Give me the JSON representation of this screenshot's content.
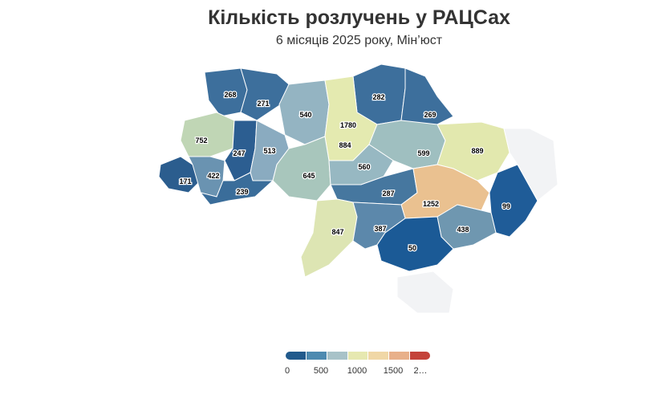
{
  "title": "Кількість розлучень у РАЦСах",
  "subtitle": "6 місяців 2025 року, Мін’юст",
  "legend": {
    "ticks": [
      "0",
      "500",
      "1000",
      "1500",
      "2…"
    ],
    "colors": [
      "#215a8c",
      "#4d8ab0",
      "#a8c2c8",
      "#e6e8b0",
      "#f0d7a6",
      "#e8b08a",
      "#c4433a"
    ]
  },
  "map_data": {
    "type": "choropleth",
    "regions": [
      {
        "value": 268,
        "color": "#3d6f9c"
      },
      {
        "value": 271,
        "color": "#3d6f9c"
      },
      {
        "value": 540,
        "color": "#94b4c2"
      },
      {
        "value": 282,
        "color": "#3d6f9c"
      },
      {
        "value": 269,
        "color": "#3d6f9c"
      },
      {
        "value": 752,
        "color": "#c0d6b5"
      },
      {
        "value": 247,
        "color": "#2c5e91"
      },
      {
        "value": 513,
        "color": "#8aabc0"
      },
      {
        "value": 1780,
        "color": "#b73d36"
      },
      {
        "value": 884,
        "color": "#e4eab0"
      },
      {
        "value": 599,
        "color": "#9fbfc0"
      },
      {
        "value": 889,
        "color": "#e2e8ae"
      },
      {
        "value": 171,
        "color": "#2b5d8e"
      },
      {
        "value": 422,
        "color": "#6a93b1"
      },
      {
        "value": 239,
        "color": "#3a6d9a"
      },
      {
        "value": 645,
        "color": "#a8c6bc"
      },
      {
        "value": 560,
        "color": "#97b8c2"
      },
      {
        "value": 287,
        "color": "#46779f"
      },
      {
        "value": 1252,
        "color": "#eac190"
      },
      {
        "value": 99,
        "color": "#1f5c98"
      },
      {
        "value": 847,
        "color": "#dde5b3"
      },
      {
        "value": 387,
        "color": "#5c88ab"
      },
      {
        "value": 438,
        "color": "#6f97b0"
      },
      {
        "value": 50,
        "color": "#1b5a96"
      },
      {
        "value": "",
        "color": "#f2f3f5"
      }
    ]
  }
}
